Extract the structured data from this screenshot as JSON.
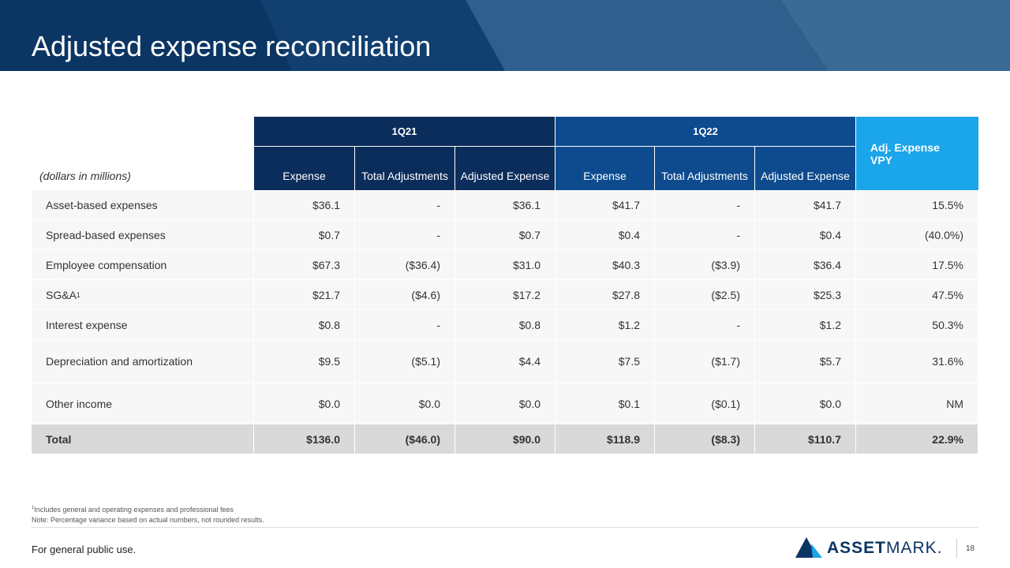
{
  "header": {
    "title": "Adjusted expense reconciliation"
  },
  "table": {
    "unit_note": "(dollars in millions)",
    "groups": [
      {
        "name": "1Q21",
        "columns": [
          "Expense",
          "Total Adjustments",
          "Adjusted Expense"
        ]
      },
      {
        "name": "1Q22",
        "columns": [
          "Expense",
          "Total Adjustments",
          "Adjusted Expense"
        ]
      }
    ],
    "variance_header": "Adj. Expense VPY",
    "rows": [
      {
        "label": "Asset-based expenses",
        "values": [
          "$36.1",
          "-",
          "$36.1",
          "$41.7",
          "-",
          "$41.7",
          "15.5%"
        ]
      },
      {
        "label": "Spread-based expenses",
        "values": [
          "$0.7",
          "-",
          "$0.7",
          "$0.4",
          "-",
          "$0.4",
          "(40.0%)"
        ]
      },
      {
        "label": "Employee compensation",
        "values": [
          "$67.3",
          "($36.4)",
          "$31.0",
          "$40.3",
          "($3.9)",
          "$36.4",
          "17.5%"
        ]
      },
      {
        "label": "SG&A",
        "note_mark": "1",
        "values": [
          "$21.7",
          "($4.6)",
          "$17.2",
          "$27.8",
          "($2.5)",
          "$25.3",
          "47.5%"
        ]
      },
      {
        "label": "Interest expense",
        "values": [
          "$0.8",
          "-",
          "$0.8",
          "$1.2",
          "-",
          "$1.2",
          "50.3%"
        ]
      },
      {
        "label": "Depreciation and amortization",
        "values": [
          "$9.5",
          "($5.1)",
          "$4.4",
          "$7.5",
          "($1.7)",
          "$5.7",
          "31.6%"
        ]
      },
      {
        "label": "Other income",
        "values": [
          "$0.0",
          "$0.0",
          "$0.0",
          "$0.1",
          "($0.1)",
          "$0.0",
          "NM"
        ]
      },
      {
        "label": "Total",
        "values": [
          "$136.0",
          "($46.0)",
          "$90.0",
          "$118.9",
          "($8.3)",
          "$110.7",
          "22.9%"
        ]
      }
    ]
  },
  "footnotes": [
    {
      "mark": "1",
      "text": "Includes general and operating expenses and professional fees"
    },
    {
      "text": "Note: Percentage variance based on actual numbers, not rounded results."
    }
  ],
  "footer": {
    "disclaimer": "For general public use.",
    "logo_bold": "ASSET",
    "logo_light": "MARK.",
    "page": "18"
  }
}
